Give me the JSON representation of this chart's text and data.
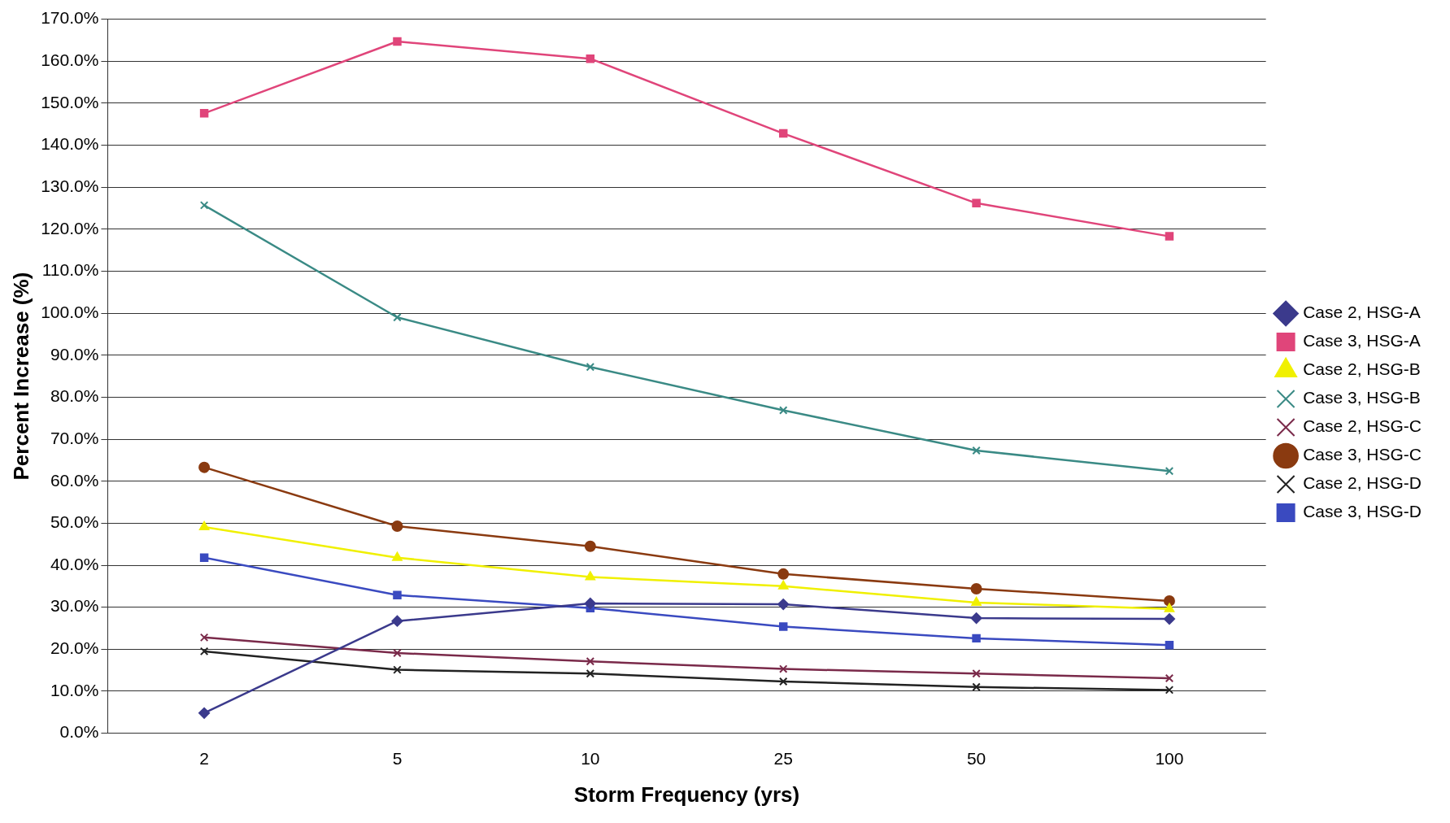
{
  "chart_data": {
    "type": "line",
    "xlabel": "Storm Frequency (yrs)",
    "ylabel": "Percent Increase (%)",
    "categories": [
      "2",
      "5",
      "10",
      "25",
      "50",
      "100"
    ],
    "ylim": [
      0,
      170
    ],
    "yticks": [
      {
        "value": 0,
        "label": "0.0%"
      },
      {
        "value": 10,
        "label": "10.0%"
      },
      {
        "value": 20,
        "label": "20.0%"
      },
      {
        "value": 30,
        "label": "30.0%"
      },
      {
        "value": 40,
        "label": "40.0%"
      },
      {
        "value": 50,
        "label": "50.0%"
      },
      {
        "value": 60,
        "label": "60.0%"
      },
      {
        "value": 70,
        "label": "70.0%"
      },
      {
        "value": 80,
        "label": "80.0%"
      },
      {
        "value": 90,
        "label": "90.0%"
      },
      {
        "value": 100,
        "label": "100.0%"
      },
      {
        "value": 110,
        "label": "110.0%"
      },
      {
        "value": 120,
        "label": "120.0%"
      },
      {
        "value": 130,
        "label": "130.0%"
      },
      {
        "value": 140,
        "label": "140.0%"
      },
      {
        "value": 150,
        "label": "150.0%"
      },
      {
        "value": 160,
        "label": "160.0%"
      },
      {
        "value": 170,
        "label": "170.0%"
      }
    ],
    "grid": "y",
    "legend": "right",
    "line_style": "solid",
    "series": [
      {
        "name": "Case 2, HSG-A",
        "color": "#3b3a8c",
        "marker": "diamond",
        "values": [
          4.8,
          26.7,
          30.9,
          30.7,
          27.4,
          27.2
        ]
      },
      {
        "name": "Case 3, HSG-A",
        "color": "#e0457a",
        "marker": "square",
        "values": [
          147.6,
          164.7,
          160.6,
          142.8,
          126.2,
          118.3
        ]
      },
      {
        "name": "Case 2, HSG-B",
        "color": "#f0f000",
        "marker": "triangle",
        "values": [
          49.1,
          41.8,
          37.2,
          35.0,
          31.1,
          29.6
        ]
      },
      {
        "name": "Case 3, HSG-B",
        "color": "#3a8a85",
        "marker": "cross",
        "values": [
          125.7,
          99.0,
          87.2,
          76.9,
          67.3,
          62.4
        ]
      },
      {
        "name": "Case 2, HSG-C",
        "color": "#7a2a4a",
        "marker": "cross",
        "values": [
          22.8,
          19.1,
          17.1,
          15.3,
          14.2,
          13.1
        ]
      },
      {
        "name": "Case 3, HSG-C",
        "color": "#8a3a10",
        "marker": "circle",
        "values": [
          63.3,
          49.3,
          44.5,
          37.9,
          34.4,
          31.5
        ]
      },
      {
        "name": "Case 2, HSG-D",
        "color": "#222222",
        "marker": "cross",
        "values": [
          19.5,
          15.1,
          14.2,
          12.3,
          11.0,
          10.3
        ]
      },
      {
        "name": "Case 3, HSG-D",
        "color": "#3a4ac0",
        "marker": "square",
        "values": [
          41.8,
          32.9,
          29.8,
          25.4,
          22.6,
          21.0
        ]
      }
    ]
  }
}
